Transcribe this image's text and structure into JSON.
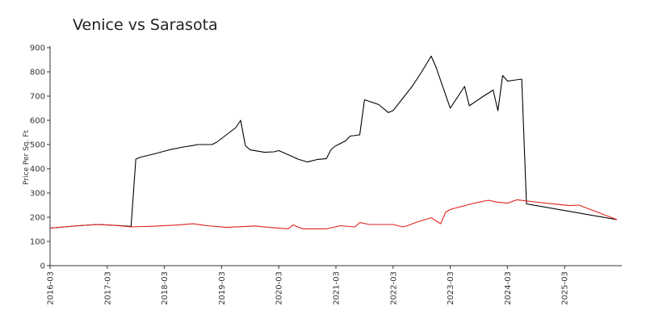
{
  "chart_data": {
    "type": "line",
    "title": "Venice vs Sarasota",
    "xlabel": "",
    "ylabel": "Price Per Sq. Ft",
    "ylim": [
      0,
      900
    ],
    "xlim": [
      "2016-03",
      "2026-03"
    ],
    "yticks": [
      0,
      100,
      200,
      300,
      400,
      500,
      600,
      700,
      800,
      900
    ],
    "xticks": [
      "2016-03",
      "2017-03",
      "2018-03",
      "2019-03",
      "2020-03",
      "2021-03",
      "2022-03",
      "2023-03",
      "2024-03",
      "2025-03"
    ],
    "grid": false,
    "legend": "none",
    "series": [
      {
        "color": "#000000",
        "points": [
          [
            "2016-03",
            155
          ],
          [
            "2016-09",
            165
          ],
          [
            "2017-01",
            170
          ],
          [
            "2017-06",
            165
          ],
          [
            "2017-08",
            162
          ],
          [
            "2017-09",
            440
          ],
          [
            "2017-10",
            448
          ],
          [
            "2018-01",
            462
          ],
          [
            "2018-04",
            478
          ],
          [
            "2018-07",
            490
          ],
          [
            "2018-09",
            496
          ],
          [
            "2018-10",
            500
          ],
          [
            "2019-01",
            500
          ],
          [
            "2019-02",
            510
          ],
          [
            "2019-06",
            570
          ],
          [
            "2019-07",
            600
          ],
          [
            "2019-08",
            495
          ],
          [
            "2019-09",
            478
          ],
          [
            "2019-12",
            468
          ],
          [
            "2020-02",
            470
          ],
          [
            "2020-03",
            475
          ],
          [
            "2020-05",
            458
          ],
          [
            "2020-07",
            440
          ],
          [
            "2020-09",
            428
          ],
          [
            "2020-11",
            438
          ],
          [
            "2021-01",
            442
          ],
          [
            "2021-02",
            480
          ],
          [
            "2021-03",
            495
          ],
          [
            "2021-05",
            515
          ],
          [
            "2021-06",
            535
          ],
          [
            "2021-08",
            540
          ],
          [
            "2021-09",
            685
          ],
          [
            "2021-12",
            665
          ],
          [
            "2022-02",
            632
          ],
          [
            "2022-03",
            640
          ],
          [
            "2022-05",
            690
          ],
          [
            "2022-07",
            740
          ],
          [
            "2022-09",
            800
          ],
          [
            "2022-11",
            865
          ],
          [
            "2022-12",
            820
          ],
          [
            "2023-03",
            650
          ],
          [
            "2023-06",
            740
          ],
          [
            "2023-07",
            660
          ],
          [
            "2023-10",
            700
          ],
          [
            "2023-12",
            725
          ],
          [
            "2024-01",
            640
          ],
          [
            "2024-02",
            785
          ],
          [
            "2024-03",
            762
          ],
          [
            "2024-06",
            770
          ],
          [
            "2024-07",
            255
          ],
          [
            "2026-02",
            190
          ]
        ]
      },
      {
        "color": "#e0201b",
        "points": [
          [
            "2016-03",
            155
          ],
          [
            "2016-09",
            165
          ],
          [
            "2017-01",
            170
          ],
          [
            "2017-05",
            166
          ],
          [
            "2017-08",
            160
          ],
          [
            "2018-01",
            163
          ],
          [
            "2018-06",
            168
          ],
          [
            "2018-09",
            173
          ],
          [
            "2018-12",
            165
          ],
          [
            "2019-04",
            158
          ],
          [
            "2019-08",
            162
          ],
          [
            "2019-10",
            164
          ],
          [
            "2020-01",
            158
          ],
          [
            "2020-05",
            152
          ],
          [
            "2020-06",
            168
          ],
          [
            "2020-08",
            152
          ],
          [
            "2021-01",
            152
          ],
          [
            "2021-04",
            165
          ],
          [
            "2021-07",
            160
          ],
          [
            "2021-08",
            178
          ],
          [
            "2021-10",
            170
          ],
          [
            "2022-03",
            170
          ],
          [
            "2022-05",
            160
          ],
          [
            "2022-06",
            165
          ],
          [
            "2022-08",
            180
          ],
          [
            "2022-11",
            198
          ],
          [
            "2023-01",
            173
          ],
          [
            "2023-02",
            220
          ],
          [
            "2023-03",
            232
          ],
          [
            "2023-08",
            258
          ],
          [
            "2023-11",
            270
          ],
          [
            "2024-01",
            262
          ],
          [
            "2024-03",
            258
          ],
          [
            "2024-05",
            272
          ],
          [
            "2024-08",
            265
          ],
          [
            "2024-11",
            258
          ],
          [
            "2025-04",
            248
          ],
          [
            "2025-06",
            250
          ],
          [
            "2026-02",
            190
          ]
        ]
      }
    ]
  }
}
